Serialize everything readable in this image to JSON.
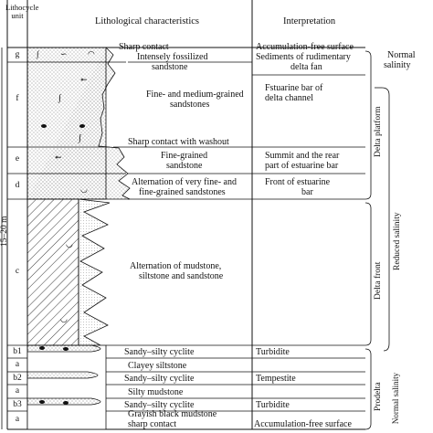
{
  "header": {
    "unit_col": "Lithocycle unit",
    "litho_col": "Lithological characteristics",
    "interp_col": "Interpretation"
  },
  "thickness_label": "15–20 m",
  "units": [
    "g",
    "f",
    "e",
    "d",
    "c",
    "b1",
    "a",
    "b2",
    "a",
    "b3",
    "a"
  ],
  "litho_labels": [
    "Sharp contact",
    "Intensely fossilized",
    "sandstone",
    "Fine- and medium-grained",
    "sandstones",
    "Sharp contact with washout",
    "Fine-grained",
    "sandstone",
    "Alternation of very fine- and",
    "fine-grained sandstones",
    "Alternation of mudstone,",
    "siltstone and sandstone",
    "Sandy–silty cyclite",
    "Clayey siltstone",
    "Sandy–silty cyclite",
    "Silty mudstone",
    "Sandy–silty cyclite",
    "Grayish black mudstone",
    "sharp contact"
  ],
  "interp_labels": [
    "Accumulation-free surface",
    "Sediments of rudimentary",
    "delta fan",
    "Fstuarine bar of",
    "delta channel",
    "Summit and the rear",
    "part of estuarine bar",
    "Front of estuarine",
    "bar",
    "Turbidite",
    "Tempestite",
    "Turbidite",
    "Accumulation-free surface"
  ],
  "facies": [
    "Delta platform",
    "Delta front",
    "Prodelta"
  ],
  "salinity": [
    "Normal",
    "salinity",
    "Reduced salinity",
    "Normal salinity"
  ]
}
